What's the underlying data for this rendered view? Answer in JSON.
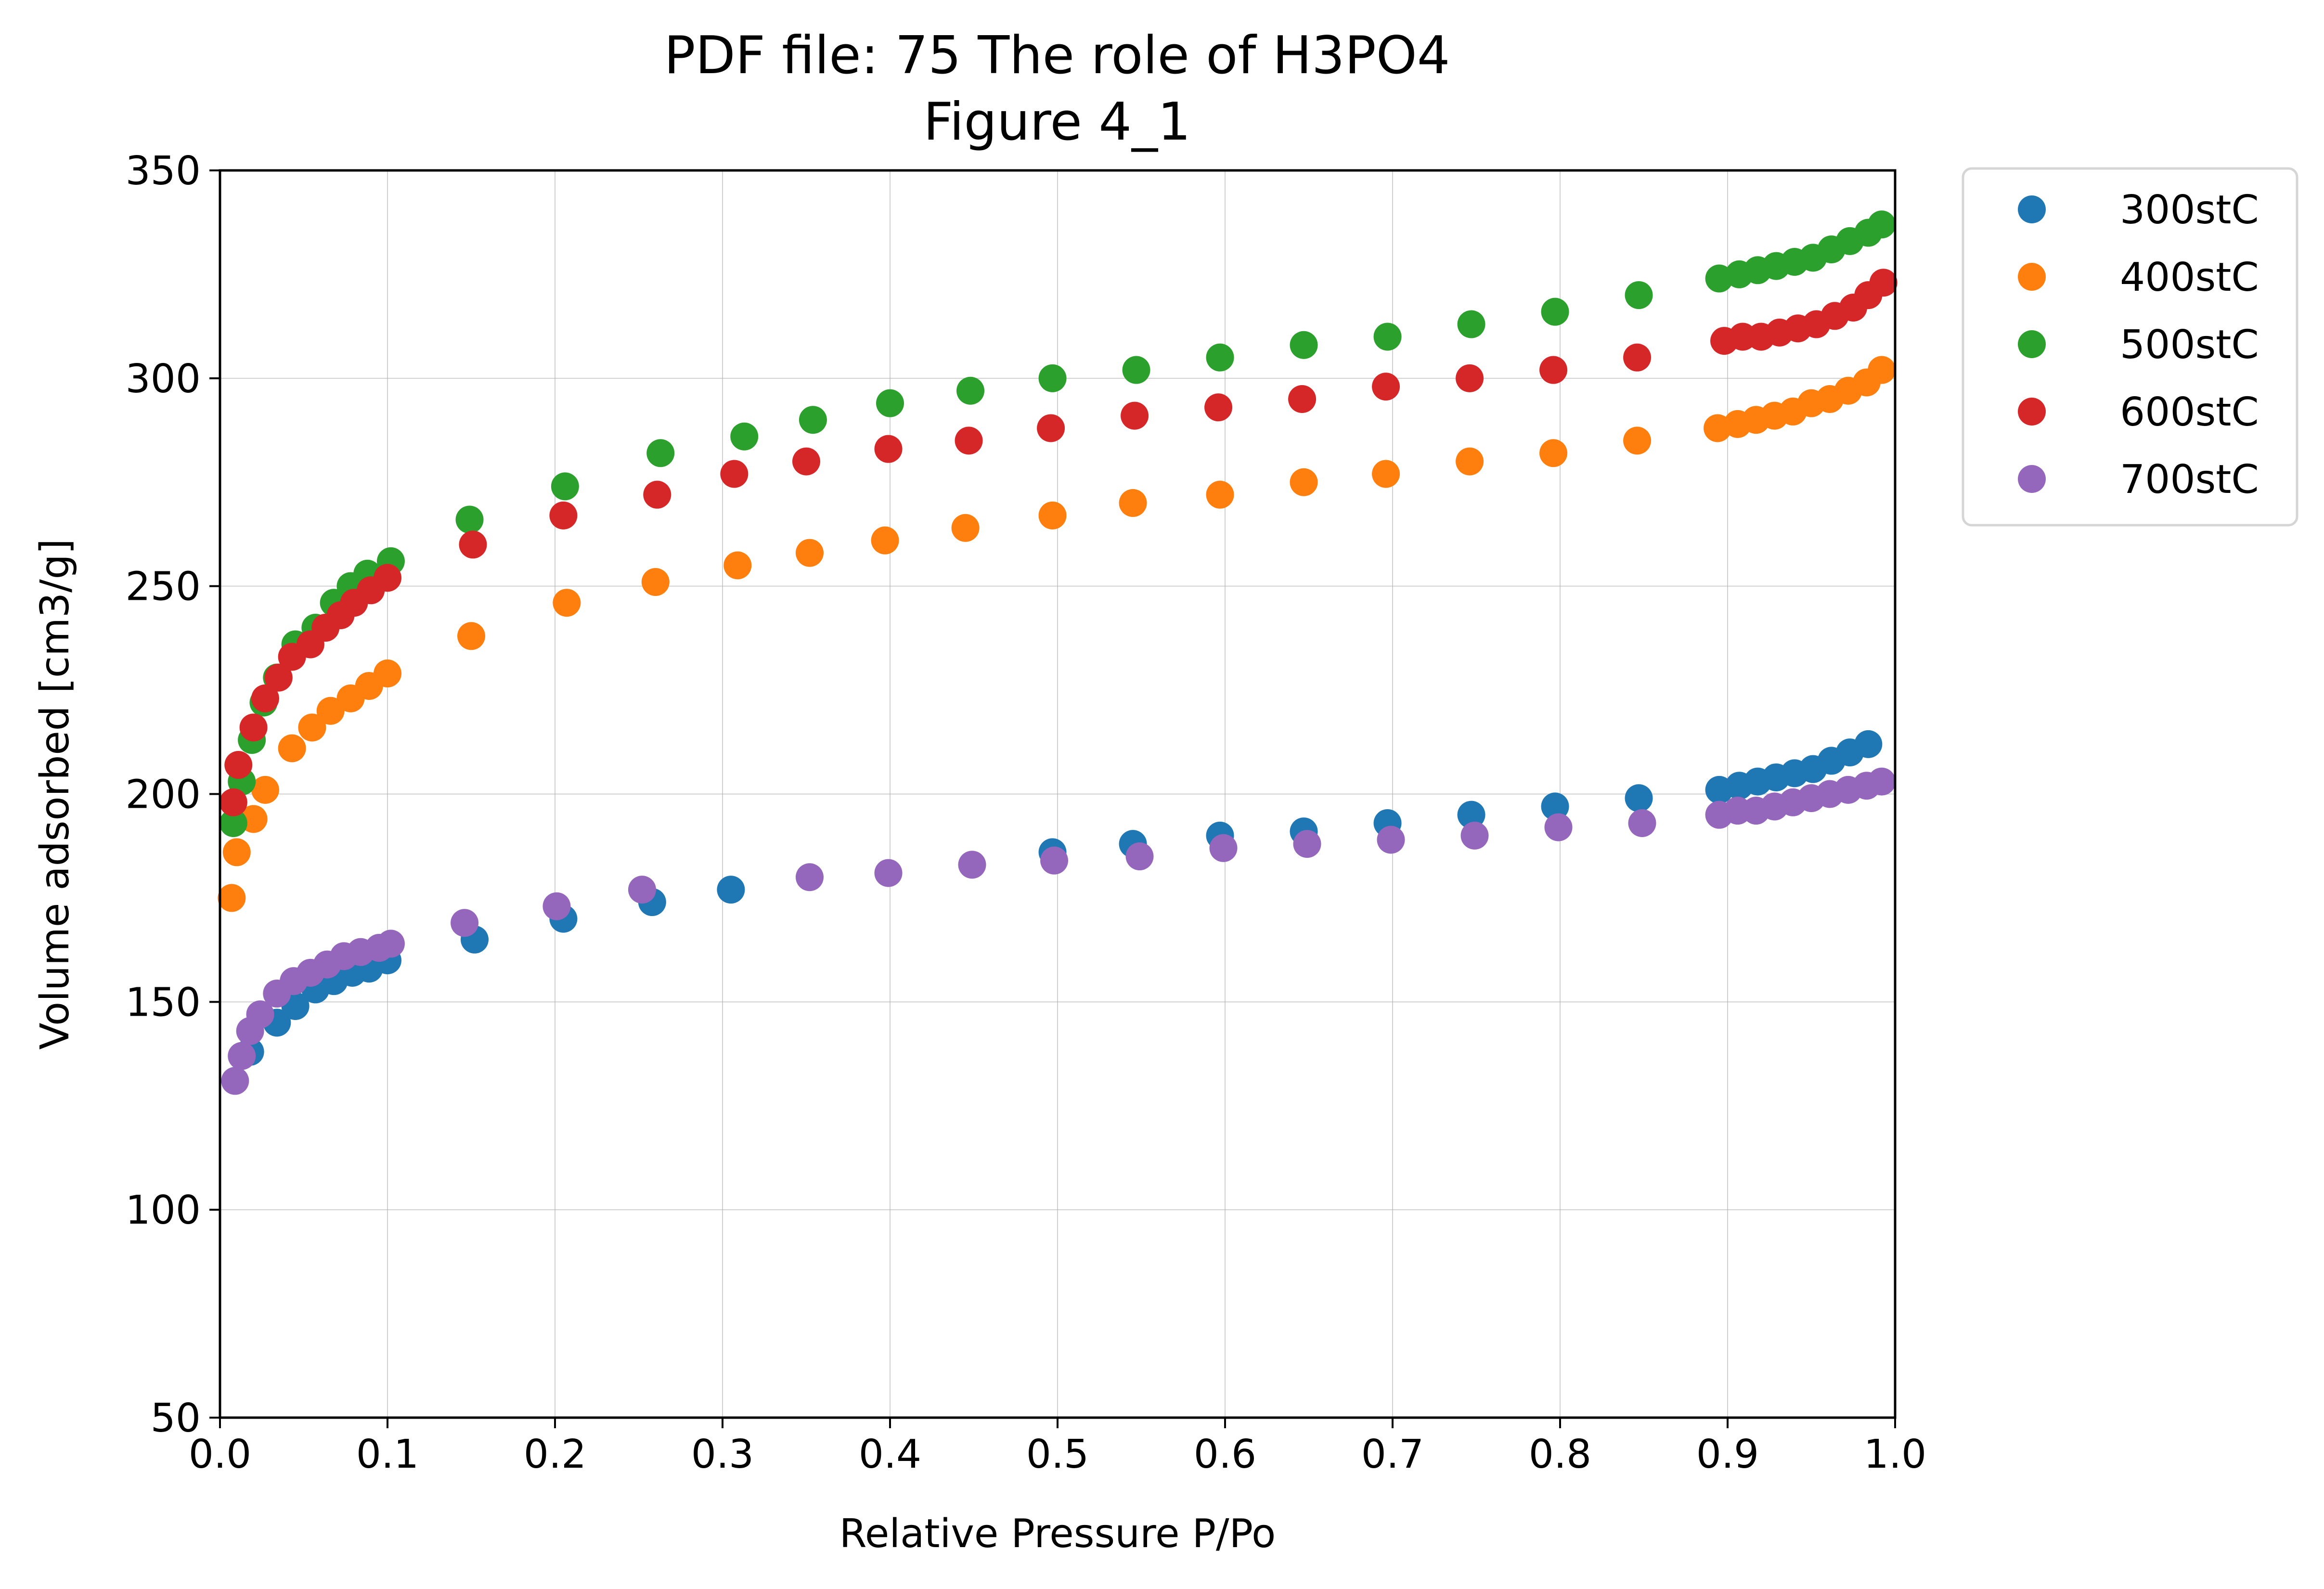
{
  "chart_data": {
    "type": "scatter",
    "title": "PDF file: 75 The role of H3PO4",
    "subtitle": "Figure 4_1",
    "xlabel": "Relative Pressure P/Po",
    "ylabel": "Volume adsorbed [cm3/g]",
    "xlim": [
      0.0,
      1.0
    ],
    "ylim": [
      50,
      350
    ],
    "xticks": [
      "0.0",
      "0.1",
      "0.2",
      "0.3",
      "0.4",
      "0.5",
      "0.6",
      "0.7",
      "0.8",
      "0.9",
      "1.0"
    ],
    "yticks": [
      "50",
      "100",
      "150",
      "200",
      "250",
      "300",
      "350"
    ],
    "grid": true,
    "legend_position": "outside-top-right",
    "series": [
      {
        "name": "300stC",
        "color": "#1f77b4",
        "points": [
          [
            0.018,
            138
          ],
          [
            0.034,
            145
          ],
          [
            0.045,
            149
          ],
          [
            0.057,
            153
          ],
          [
            0.068,
            155
          ],
          [
            0.079,
            157
          ],
          [
            0.089,
            158
          ],
          [
            0.1,
            160
          ],
          [
            0.152,
            165
          ],
          [
            0.205,
            170
          ],
          [
            0.258,
            174
          ],
          [
            0.305,
            177
          ],
          [
            0.497,
            186
          ],
          [
            0.545,
            188
          ],
          [
            0.597,
            190
          ],
          [
            0.647,
            191
          ],
          [
            0.697,
            193
          ],
          [
            0.747,
            195
          ],
          [
            0.797,
            197
          ],
          [
            0.847,
            199
          ],
          [
            0.895,
            201
          ],
          [
            0.907,
            202
          ],
          [
            0.918,
            203
          ],
          [
            0.929,
            204
          ],
          [
            0.94,
            205
          ],
          [
            0.951,
            206
          ],
          [
            0.962,
            208
          ],
          [
            0.973,
            210
          ],
          [
            0.984,
            212
          ]
        ]
      },
      {
        "name": "400stC",
        "color": "#ff7f0e",
        "points": [
          [
            0.007,
            175
          ],
          [
            0.01,
            186
          ],
          [
            0.02,
            194
          ],
          [
            0.027,
            201
          ],
          [
            0.043,
            211
          ],
          [
            0.055,
            216
          ],
          [
            0.066,
            220
          ],
          [
            0.078,
            223
          ],
          [
            0.089,
            226
          ],
          [
            0.1,
            229
          ],
          [
            0.15,
            238
          ],
          [
            0.207,
            246
          ],
          [
            0.26,
            251
          ],
          [
            0.309,
            255
          ],
          [
            0.352,
            258
          ],
          [
            0.397,
            261
          ],
          [
            0.445,
            264
          ],
          [
            0.497,
            267
          ],
          [
            0.545,
            270
          ],
          [
            0.597,
            272
          ],
          [
            0.647,
            275
          ],
          [
            0.696,
            277
          ],
          [
            0.746,
            280
          ],
          [
            0.796,
            282
          ],
          [
            0.846,
            285
          ],
          [
            0.894,
            288
          ],
          [
            0.906,
            289
          ],
          [
            0.917,
            290
          ],
          [
            0.928,
            291
          ],
          [
            0.939,
            292
          ],
          [
            0.95,
            294
          ],
          [
            0.961,
            295
          ],
          [
            0.972,
            297
          ],
          [
            0.983,
            299
          ],
          [
            0.992,
            302
          ]
        ]
      },
      {
        "name": "500stC",
        "color": "#2ca02c",
        "points": [
          [
            0.008,
            193
          ],
          [
            0.013,
            203
          ],
          [
            0.019,
            213
          ],
          [
            0.026,
            222
          ],
          [
            0.034,
            228
          ],
          [
            0.045,
            236
          ],
          [
            0.057,
            240
          ],
          [
            0.068,
            246
          ],
          [
            0.078,
            250
          ],
          [
            0.088,
            253
          ],
          [
            0.102,
            256
          ],
          [
            0.149,
            266
          ],
          [
            0.206,
            274
          ],
          [
            0.263,
            282
          ],
          [
            0.313,
            286
          ],
          [
            0.354,
            290
          ],
          [
            0.4,
            294
          ],
          [
            0.448,
            297
          ],
          [
            0.497,
            300
          ],
          [
            0.547,
            302
          ],
          [
            0.597,
            305
          ],
          [
            0.647,
            308
          ],
          [
            0.697,
            310
          ],
          [
            0.747,
            313
          ],
          [
            0.797,
            316
          ],
          [
            0.847,
            320
          ],
          [
            0.895,
            324
          ],
          [
            0.907,
            325
          ],
          [
            0.918,
            326
          ],
          [
            0.929,
            327
          ],
          [
            0.94,
            328
          ],
          [
            0.951,
            329
          ],
          [
            0.962,
            331
          ],
          [
            0.973,
            333
          ],
          [
            0.984,
            335
          ],
          [
            0.992,
            337
          ]
        ]
      },
      {
        "name": "600stC",
        "color": "#d62728",
        "points": [
          [
            0.008,
            198
          ],
          [
            0.011,
            207
          ],
          [
            0.02,
            216
          ],
          [
            0.027,
            223
          ],
          [
            0.035,
            228
          ],
          [
            0.043,
            233
          ],
          [
            0.054,
            236
          ],
          [
            0.063,
            240
          ],
          [
            0.072,
            243
          ],
          [
            0.08,
            246
          ],
          [
            0.09,
            249
          ],
          [
            0.1,
            252
          ],
          [
            0.151,
            260
          ],
          [
            0.205,
            267
          ],
          [
            0.261,
            272
          ],
          [
            0.307,
            277
          ],
          [
            0.35,
            280
          ],
          [
            0.399,
            283
          ],
          [
            0.447,
            285
          ],
          [
            0.496,
            288
          ],
          [
            0.546,
            291
          ],
          [
            0.596,
            293
          ],
          [
            0.646,
            295
          ],
          [
            0.696,
            298
          ],
          [
            0.746,
            300
          ],
          [
            0.796,
            302
          ],
          [
            0.846,
            305
          ],
          [
            0.898,
            309
          ],
          [
            0.909,
            310
          ],
          [
            0.92,
            310
          ],
          [
            0.931,
            311
          ],
          [
            0.942,
            312
          ],
          [
            0.953,
            313
          ],
          [
            0.964,
            315
          ],
          [
            0.975,
            317
          ],
          [
            0.984,
            320
          ],
          [
            0.993,
            323
          ]
        ]
      },
      {
        "name": "700stC",
        "color": "#9467bd",
        "points": [
          [
            0.009,
            131
          ],
          [
            0.013,
            137
          ],
          [
            0.018,
            143
          ],
          [
            0.024,
            147
          ],
          [
            0.034,
            152
          ],
          [
            0.044,
            155
          ],
          [
            0.054,
            157
          ],
          [
            0.064,
            159
          ],
          [
            0.074,
            161
          ],
          [
            0.084,
            162
          ],
          [
            0.095,
            163
          ],
          [
            0.102,
            164
          ],
          [
            0.146,
            169
          ],
          [
            0.201,
            173
          ],
          [
            0.252,
            177
          ],
          [
            0.352,
            180
          ],
          [
            0.399,
            181
          ],
          [
            0.449,
            183
          ],
          [
            0.498,
            184
          ],
          [
            0.549,
            185
          ],
          [
            0.599,
            187
          ],
          [
            0.649,
            188
          ],
          [
            0.699,
            189
          ],
          [
            0.749,
            190
          ],
          [
            0.799,
            192
          ],
          [
            0.849,
            193
          ],
          [
            0.895,
            195
          ],
          [
            0.906,
            196
          ],
          [
            0.917,
            196
          ],
          [
            0.928,
            197
          ],
          [
            0.939,
            198
          ],
          [
            0.95,
            199
          ],
          [
            0.961,
            200
          ],
          [
            0.972,
            201
          ],
          [
            0.983,
            202
          ],
          [
            0.992,
            203
          ]
        ]
      }
    ]
  }
}
